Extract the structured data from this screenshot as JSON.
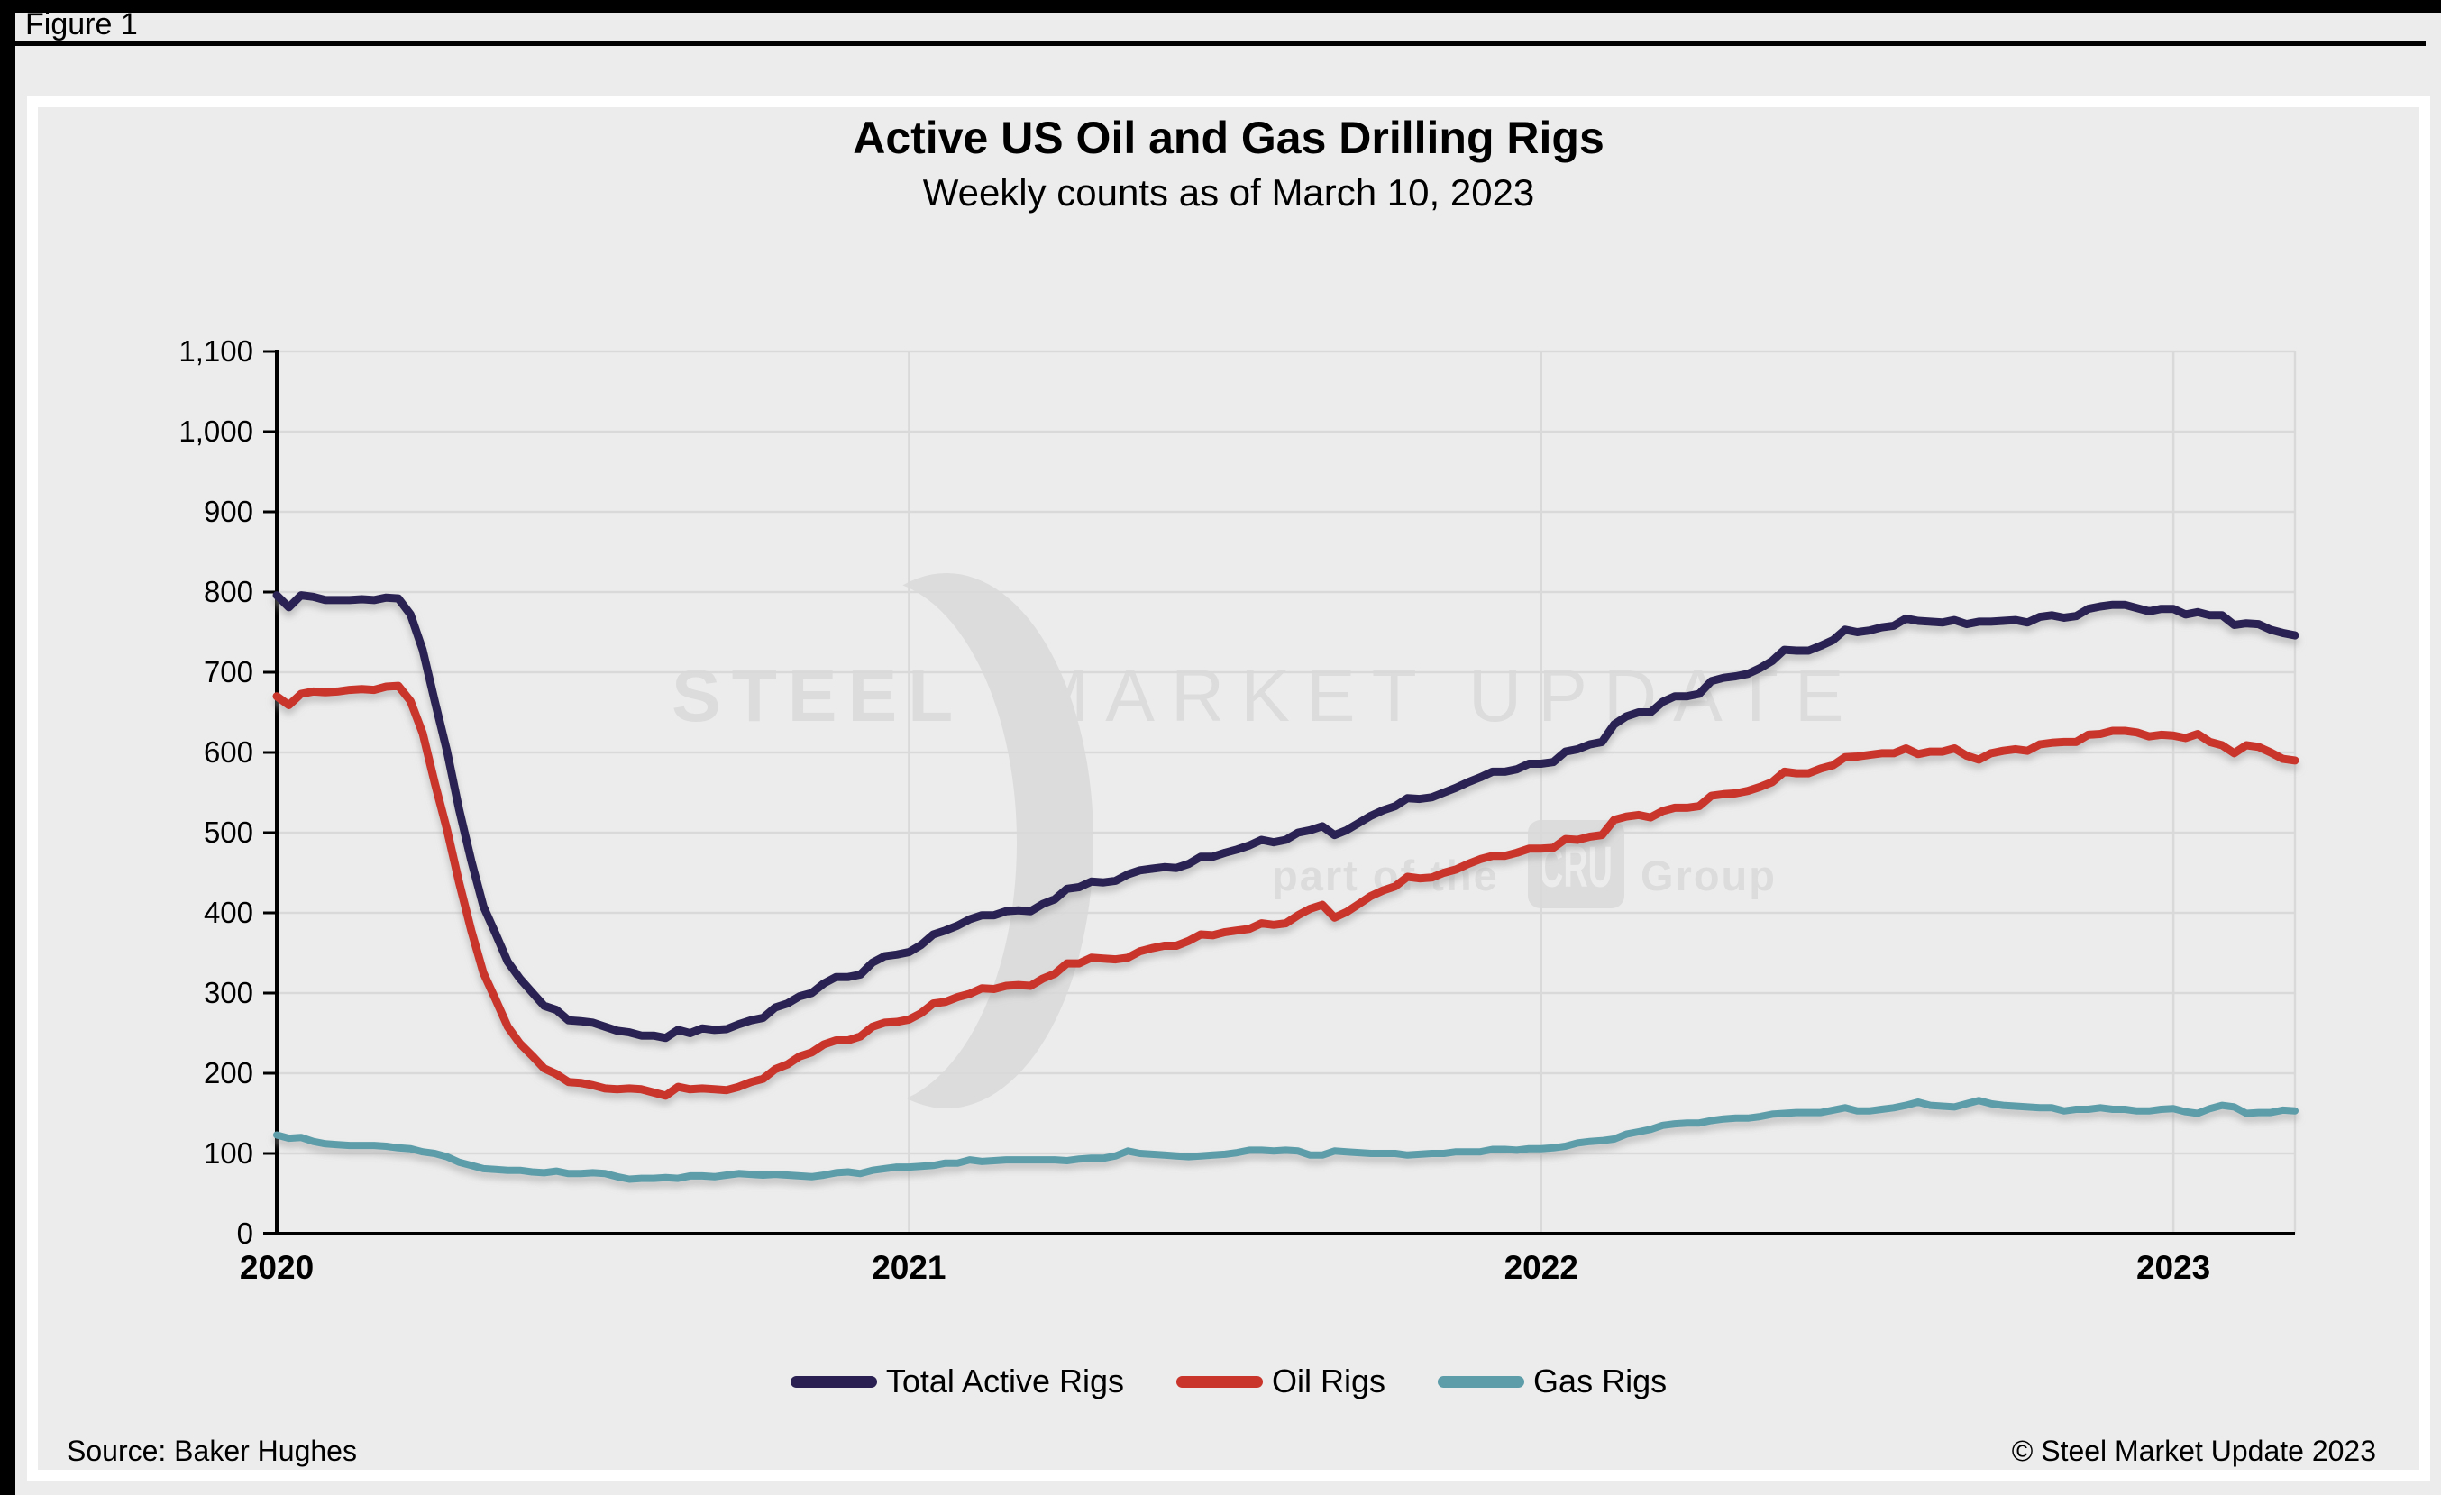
{
  "window": {
    "figure_label": "Figure 1"
  },
  "chart": {
    "title": "Active US Oil and Gas Drilling Rigs",
    "subtitle": "Weekly counts as of March 10, 2023",
    "source": "Source: Baker Hughes",
    "copyright": "© Steel Market Update 2023"
  },
  "watermark": {
    "word1": "STEEL",
    "word2": "MARKET UPDATE",
    "tagline_prefix": "part of the",
    "badge": "CRU",
    "tagline_suffix": "Group"
  },
  "colors": {
    "background": "#ECECEC",
    "panel_border": "#FFFFFF",
    "grid": "#D9D9D9",
    "axis": "#000000",
    "tick_label": "#000000",
    "watermark": "#DCDCDC",
    "watermark_knockout": "#ECECEC",
    "shadow": "#9A9A9A"
  },
  "chart_data": {
    "type": "line",
    "title": "Active US Oil and Gas Drilling Rigs",
    "subtitle": "Weekly counts as of March 10, 2023",
    "x_unit": "week",
    "x_range": [
      "2020-01-03",
      "2023-03-10"
    ],
    "grid": true,
    "legend_position": "bottom",
    "ylim": [
      0,
      1100
    ],
    "y_ticks": [
      {
        "value": 0,
        "label": "0"
      },
      {
        "value": 100,
        "label": "100"
      },
      {
        "value": 200,
        "label": "200"
      },
      {
        "value": 300,
        "label": "300"
      },
      {
        "value": 400,
        "label": "400"
      },
      {
        "value": 500,
        "label": "500"
      },
      {
        "value": 600,
        "label": "600"
      },
      {
        "value": 700,
        "label": "700"
      },
      {
        "value": 800,
        "label": "800"
      },
      {
        "value": 900,
        "label": "900"
      },
      {
        "value": 1000,
        "label": "1,000"
      },
      {
        "value": 1100,
        "label": "1,100"
      }
    ],
    "x_ticks": [
      {
        "label": "2020",
        "week_index": 0
      },
      {
        "label": "2021",
        "week_index": 52
      },
      {
        "label": "2022",
        "week_index": 104
      },
      {
        "label": "2023",
        "week_index": 156
      }
    ],
    "series": [
      {
        "name": "Total Active Rigs",
        "color": "#2A2152",
        "values": [
          796,
          781,
          796,
          794,
          790,
          790,
          790,
          791,
          790,
          793,
          792,
          772,
          728,
          664,
          602,
          529,
          465,
          408,
          374,
          339,
          318,
          301,
          284,
          279,
          266,
          265,
          263,
          258,
          253,
          251,
          247,
          247,
          244,
          254,
          250,
          256,
          254,
          255,
          261,
          266,
          269,
          282,
          287,
          296,
          300,
          312,
          320,
          320,
          323,
          338,
          346,
          348,
          351,
          360,
          373,
          378,
          384,
          392,
          397,
          397,
          402,
          403,
          402,
          411,
          417,
          430,
          432,
          439,
          438,
          440,
          448,
          453,
          455,
          457,
          456,
          461,
          470,
          470,
          475,
          479,
          484,
          491,
          488,
          491,
          500,
          503,
          508,
          497,
          503,
          512,
          521,
          528,
          533,
          543,
          542,
          544,
          550,
          556,
          563,
          569,
          576,
          576,
          579,
          586,
          586,
          588,
          601,
          604,
          610,
          613,
          635,
          645,
          650,
          650,
          663,
          670,
          670,
          673,
          689,
          693,
          695,
          698,
          705,
          714,
          728,
          727,
          727,
          733,
          740,
          753,
          750,
          752,
          756,
          758,
          767,
          764,
          763,
          762,
          765,
          760,
          763,
          763,
          764,
          765,
          762,
          769,
          771,
          768,
          770,
          779,
          782,
          784,
          784,
          780,
          776,
          779,
          779,
          772,
          775,
          771,
          771,
          759,
          761,
          760,
          753,
          749,
          746
        ]
      },
      {
        "name": "Oil Rigs",
        "color": "#C9352B",
        "values": [
          670,
          659,
          673,
          676,
          675,
          676,
          678,
          679,
          678,
          682,
          683,
          664,
          624,
          562,
          504,
          438,
          378,
          325,
          292,
          258,
          237,
          222,
          206,
          199,
          189,
          188,
          185,
          181,
          180,
          181,
          180,
          176,
          172,
          183,
          180,
          181,
          180,
          179,
          183,
          189,
          193,
          205,
          211,
          221,
          226,
          236,
          241,
          241,
          246,
          258,
          263,
          264,
          267,
          275,
          287,
          289,
          295,
          299,
          306,
          305,
          309,
          310,
          309,
          318,
          324,
          337,
          337,
          344,
          343,
          342,
          344,
          352,
          356,
          359,
          359,
          365,
          373,
          372,
          376,
          378,
          380,
          387,
          385,
          387,
          397,
          405,
          410,
          394,
          401,
          411,
          421,
          428,
          433,
          445,
          443,
          444,
          450,
          454,
          461,
          467,
          471,
          471,
          475,
          480,
          480,
          481,
          492,
          491,
          495,
          497,
          516,
          520,
          522,
          519,
          527,
          531,
          531,
          533,
          546,
          548,
          549,
          552,
          557,
          563,
          576,
          574,
          574,
          580,
          584,
          594,
          595,
          597,
          599,
          599,
          605,
          598,
          601,
          601,
          605,
          596,
          591,
          599,
          602,
          604,
          602,
          610,
          612,
          613,
          613,
          622,
          623,
          627,
          627,
          625,
          620,
          622,
          621,
          618,
          623,
          613,
          609,
          599,
          609,
          607,
          600,
          592,
          590
        ]
      },
      {
        "name": "Gas Rigs",
        "color": "#5C9DA9",
        "values": [
          123,
          119,
          120,
          115,
          112,
          111,
          110,
          110,
          110,
          109,
          107,
          106,
          102,
          100,
          96,
          89,
          85,
          81,
          80,
          79,
          79,
          77,
          76,
          78,
          75,
          75,
          76,
          75,
          71,
          68,
          69,
          69,
          70,
          69,
          72,
          72,
          71,
          73,
          75,
          74,
          73,
          74,
          73,
          72,
          71,
          73,
          76,
          77,
          75,
          79,
          81,
          83,
          83,
          84,
          85,
          88,
          88,
          92,
          90,
          91,
          92,
          92,
          92,
          92,
          92,
          91,
          93,
          94,
          94,
          97,
          103,
          100,
          99,
          98,
          97,
          96,
          97,
          98,
          99,
          101,
          104,
          104,
          103,
          104,
          103,
          98,
          98,
          103,
          102,
          101,
          100,
          100,
          100,
          98,
          99,
          100,
          100,
          102,
          102,
          102,
          105,
          105,
          104,
          106,
          106,
          107,
          109,
          113,
          115,
          116,
          118,
          124,
          127,
          130,
          135,
          137,
          138,
          138,
          141,
          143,
          144,
          144,
          146,
          149,
          150,
          151,
          151,
          151,
          154,
          157,
          153,
          153,
          155,
          157,
          160,
          164,
          160,
          159,
          158,
          162,
          166,
          162,
          160,
          159,
          158,
          157,
          157,
          153,
          155,
          155,
          157,
          155,
          155,
          153,
          153,
          155,
          156,
          152,
          150,
          156,
          160,
          158,
          150,
          151,
          151,
          154,
          153
        ]
      }
    ]
  }
}
